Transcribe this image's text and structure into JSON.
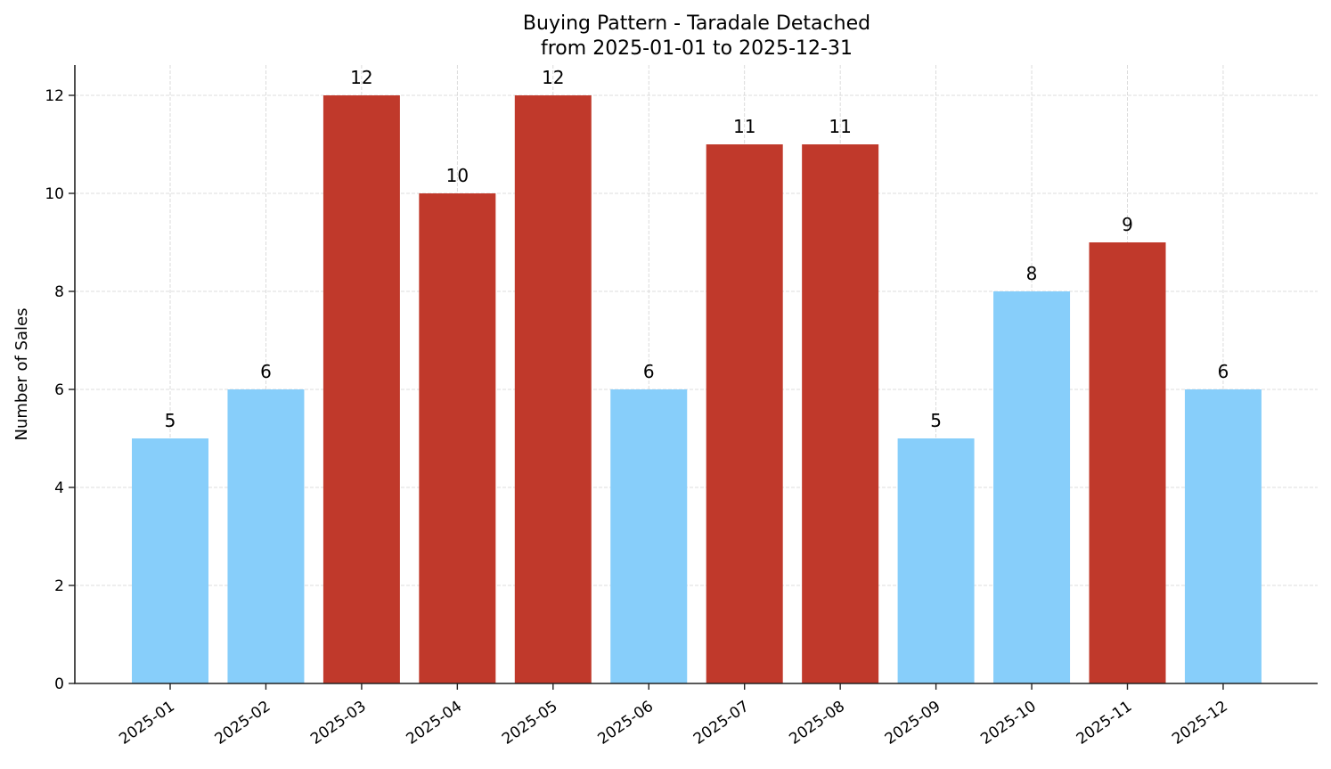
{
  "chart_data": {
    "type": "bar",
    "title": "Buying Pattern - Taradale Detached",
    "subtitle": "from 2025-01-01 to 2025-12-31",
    "xlabel": "",
    "ylabel": "Number of Sales",
    "categories": [
      "2025-01",
      "2025-02",
      "2025-03",
      "2025-04",
      "2025-05",
      "2025-06",
      "2025-07",
      "2025-08",
      "2025-09",
      "2025-10",
      "2025-11",
      "2025-12"
    ],
    "values": [
      5,
      6,
      12,
      10,
      12,
      6,
      11,
      11,
      5,
      8,
      9,
      6
    ],
    "bar_colors": [
      "#87CEFA",
      "#87CEFA",
      "#C0392B",
      "#C0392B",
      "#C0392B",
      "#87CEFA",
      "#C0392B",
      "#C0392B",
      "#87CEFA",
      "#87CEFA",
      "#C0392B",
      "#87CEFA"
    ],
    "ylim": [
      0,
      12.6
    ],
    "yticks": [
      0,
      2,
      4,
      6,
      8,
      10,
      12
    ],
    "grid": true,
    "data_labels": true,
    "legend": null,
    "colors": {
      "high": "#C0392B",
      "low": "#87CEFA",
      "grid": "#d3d3d3",
      "axis": "#222222"
    }
  }
}
